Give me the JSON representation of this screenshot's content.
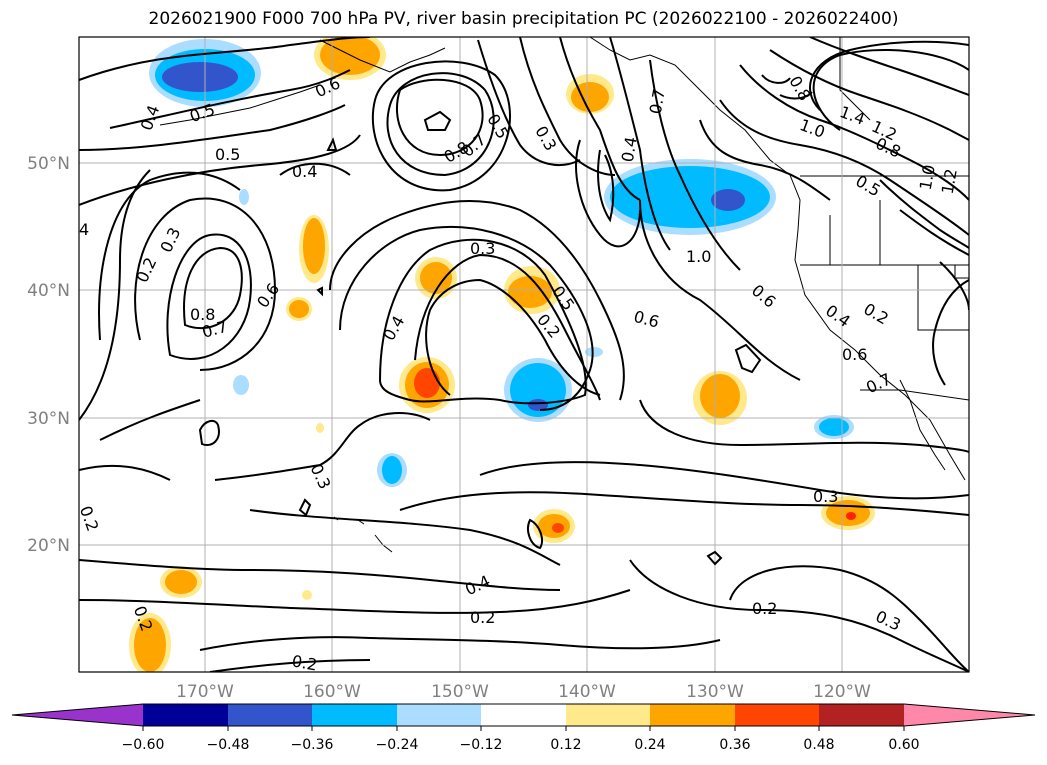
{
  "title": "2026021900 F000 700 hPa PV, river basin precipitation PC (2026022100 - 2026022400)",
  "lat_labels": [
    "50°N",
    "40°N",
    "30°N",
    "20°N"
  ],
  "lon_labels": [
    "170°W",
    "160°W",
    "150°W",
    "140°W",
    "130°W",
    "120°W"
  ],
  "contour_labels": [
    "0.4",
    "0.5",
    "0.5",
    "0.6",
    "0.4",
    "0.8",
    "0.7",
    "0.5",
    "0.3",
    "0.7",
    "0.4",
    "0.8",
    "1.0",
    "1.4",
    "1.2",
    "0.8",
    "0.5",
    "1.0",
    "1.2",
    "4",
    "0.2",
    "0.3",
    "0.3",
    "0.8",
    "0.7",
    "0.6",
    "0.5",
    "0.2",
    "0.4",
    "1.0",
    "0.6",
    "0.4",
    "0.2",
    "0.6",
    "0.6",
    "0.7",
    "0.3",
    "0.3",
    "0.2",
    "0.4",
    "0.2",
    "0.2",
    "0.3",
    "0.2",
    "0.2"
  ],
  "colorbar": {
    "ticks": [
      "−0.60",
      "−0.48",
      "−0.36",
      "−0.24",
      "−0.12",
      "0.12",
      "0.24",
      "0.36",
      "0.48",
      "0.60"
    ],
    "colors": {
      "under": "#9933cc",
      "bins": [
        "#000099",
        "#3355cc",
        "#00bbff",
        "#aaddff",
        "#ffffff",
        "#ffe98a",
        "#ffa500",
        "#ff4500",
        "#b22222"
      ],
      "over": "#ff88aa"
    }
  },
  "colors": {
    "neg_dark": "#3355cc",
    "neg_mid": "#00bbff",
    "neg_light": "#aaddff",
    "pos_light": "#ffe98a",
    "pos_mid": "#ffa500",
    "pos_strong": "#ff4500",
    "pos_max": "#ff2200",
    "gridline": "#b0b0b0",
    "contour": "#000000"
  }
}
